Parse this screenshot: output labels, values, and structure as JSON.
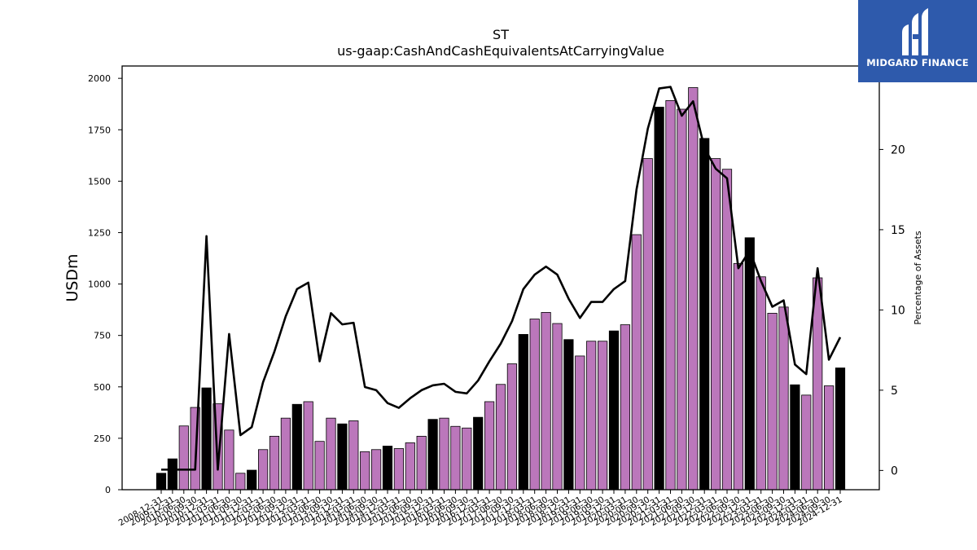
{
  "chart_data": {
    "type": "bar",
    "title": "ST",
    "subtitle": "us-gaap:CashAndCashEquivalentsAtCarryingValue",
    "ylabel": "USDm",
    "ylabel_right": "Percentage of Assets",
    "ylim": [
      0,
      2060
    ],
    "ylim_right": [
      -1.2,
      25.2
    ],
    "yticks": [
      0,
      250,
      500,
      750,
      1000,
      1250,
      1500,
      1750,
      2000
    ],
    "yticks_right": [
      0,
      5,
      10,
      15,
      20
    ],
    "categories": [
      "2008-12-31",
      "2009-12-31",
      "2010-06-30",
      "2010-09-30",
      "2010-12-31",
      "2011-03-31",
      "2011-06-30",
      "2011-09-30",
      "2011-12-31",
      "2012-03-31",
      "2012-06-30",
      "2012-09-30",
      "2012-12-31",
      "2013-03-31",
      "2013-06-30",
      "2013-09-30",
      "2013-12-31",
      "2014-03-31",
      "2014-06-30",
      "2014-09-30",
      "2014-12-31",
      "2015-03-31",
      "2015-06-30",
      "2015-09-30",
      "2015-12-31",
      "2016-03-31",
      "2016-06-30",
      "2016-09-30",
      "2016-12-31",
      "2017-03-31",
      "2017-06-30",
      "2017-09-30",
      "2017-12-31",
      "2018-03-31",
      "2018-06-30",
      "2018-09-30",
      "2018-12-31",
      "2019-03-31",
      "2019-06-30",
      "2019-09-30",
      "2019-12-31",
      "2020-03-31",
      "2020-06-30",
      "2020-09-30",
      "2020-12-31",
      "2021-03-31",
      "2021-06-30",
      "2021-09-30",
      "2021-12-31",
      "2022-03-31",
      "2022-06-30",
      "2022-09-30",
      "2022-12-31",
      "2023-03-31",
      "2023-06-30",
      "2023-09-30",
      "2023-12-31",
      "2024-03-31",
      "2024-06-30",
      "2024-09-30",
      "2024-12-31"
    ],
    "series": [
      {
        "kind": "bar",
        "values": [
          80,
          150,
          310,
          400,
          495,
          418,
          290,
          80,
          95,
          195,
          260,
          348,
          415,
          428,
          235,
          348,
          320,
          335,
          185,
          195,
          212,
          200,
          228,
          260,
          342,
          348,
          308,
          300,
          352,
          428,
          512,
          612,
          755,
          830,
          862,
          808,
          730,
          650,
          722,
          722,
          772,
          802,
          1240,
          1610,
          1860,
          1892,
          1850,
          1955,
          1708,
          1610,
          1558,
          1100,
          1225,
          1035,
          858,
          888,
          510,
          460,
          1030,
          505,
          592
        ],
        "annual_color": "#000000",
        "quarter_color": "#bb77bb",
        "annual_categories": [
          "2008-12-31",
          "2009-12-31",
          "2010-12-31",
          "2011-12-31",
          "2012-12-31",
          "2013-12-31",
          "2014-12-31",
          "2015-12-31",
          "2016-12-31",
          "2017-12-31",
          "2018-12-31",
          "2019-12-31",
          "2020-12-31",
          "2021-12-31",
          "2022-12-31",
          "2023-12-31",
          "2024-12-31"
        ]
      },
      {
        "kind": "line",
        "axis": "right",
        "color": "#000000",
        "values": [
          0.05,
          0.05,
          0.05,
          0.05,
          14.6,
          0.05,
          8.5,
          2.2,
          2.7,
          5.5,
          7.4,
          9.6,
          11.3,
          11.7,
          6.8,
          9.8,
          9.1,
          9.2,
          5.2,
          5.0,
          4.2,
          3.9,
          4.5,
          5.0,
          5.3,
          5.4,
          4.9,
          4.8,
          5.6,
          6.8,
          7.9,
          9.3,
          11.3,
          12.2,
          12.7,
          12.2,
          10.7,
          9.5,
          10.5,
          10.5,
          11.3,
          11.8,
          17.5,
          21.3,
          23.8,
          23.9,
          22.1,
          23.0,
          20.1,
          18.8,
          18.2,
          12.6,
          13.7,
          11.8,
          10.2,
          10.6,
          6.6,
          6.0,
          12.6,
          6.9,
          8.3
        ]
      }
    ]
  },
  "logo": {
    "text": "MIDGARD FINANCE",
    "background": "#2e5aac"
  }
}
